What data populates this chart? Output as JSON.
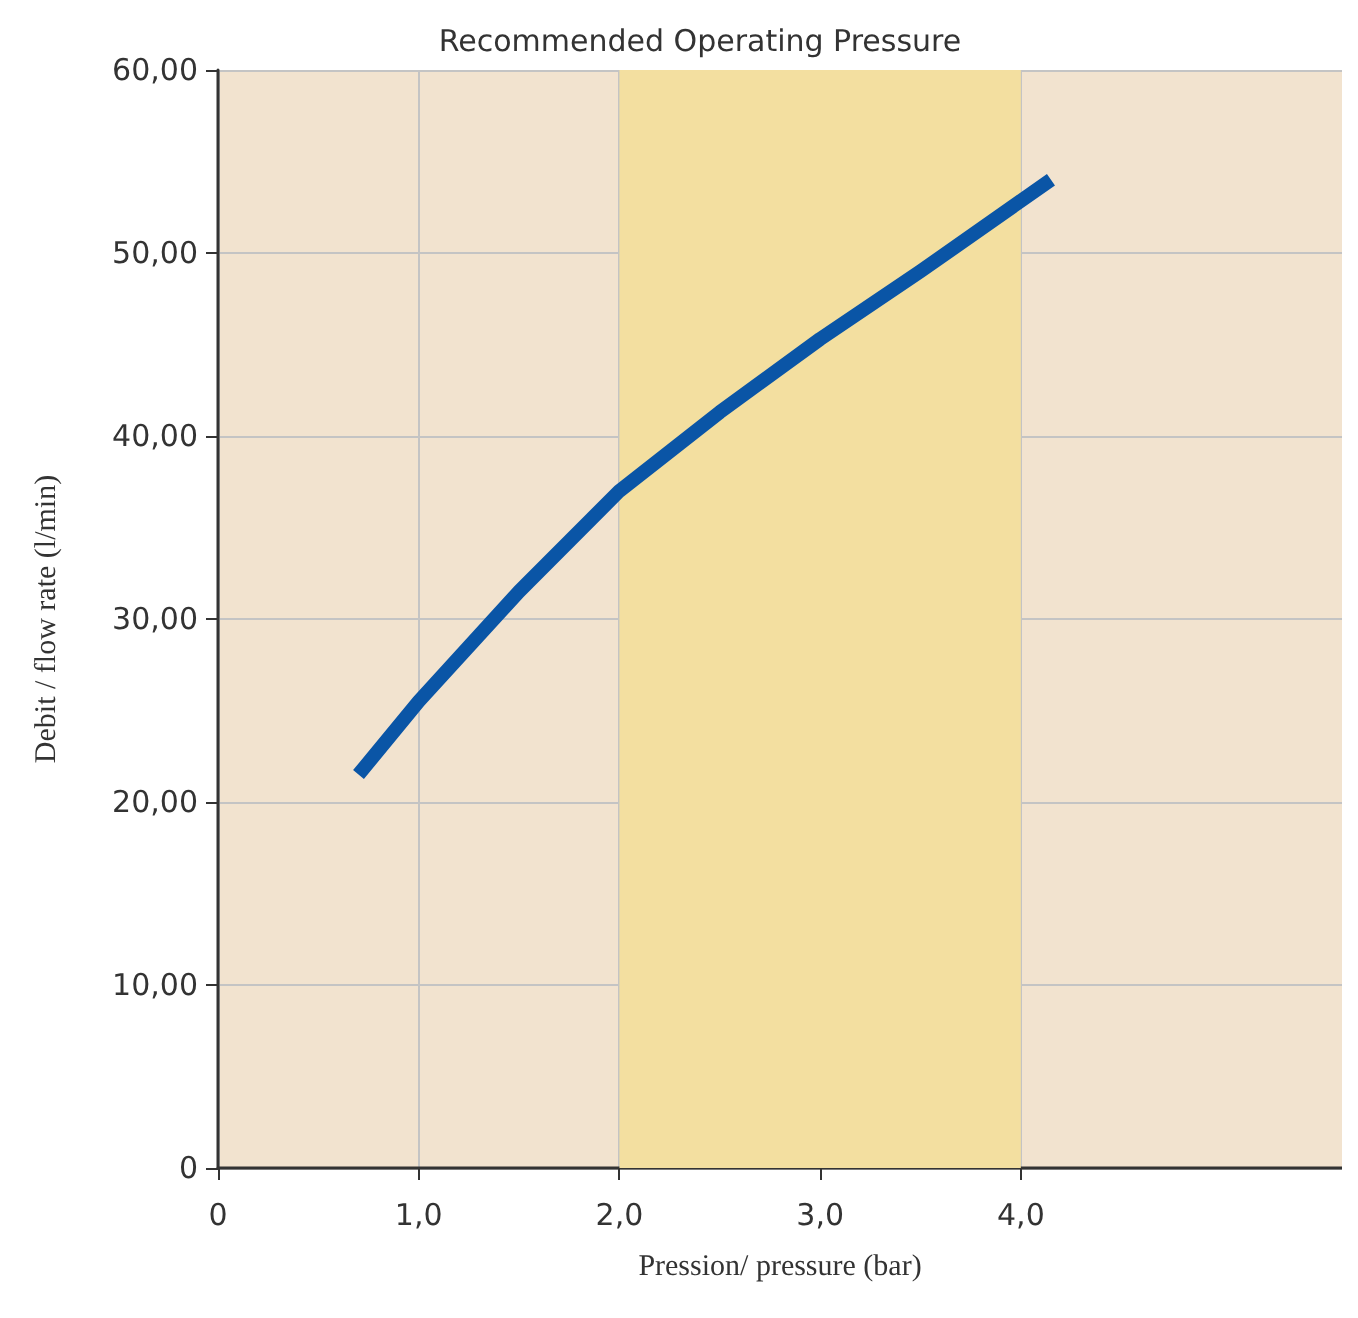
{
  "chart_data": {
    "type": "line",
    "title": "Recommended Operating Pressure",
    "xlabel": "Pression/ pressure (bar)",
    "ylabel": "Debit / flow rate (l/min)",
    "series": [
      {
        "color": "#0a55a6",
        "x": [
          0.7,
          1.0,
          1.5,
          2.0,
          2.5,
          3.0,
          3.5,
          4.15
        ],
        "values": [
          21.5,
          25.5,
          31.5,
          37,
          41.3,
          45.3,
          49,
          54
        ]
      }
    ],
    "xlim": [
      0,
      5.6
    ],
    "ylim": [
      0,
      60
    ],
    "xticks": [
      0,
      {
        "value": 1,
        "label": "1,0"
      },
      {
        "value": 2,
        "label": "2,0"
      },
      {
        "value": 3,
        "label": "3,0"
      },
      {
        "value": 4,
        "label": "4,0"
      }
    ],
    "yticks": [
      0,
      {
        "value": 10,
        "label": "10,00"
      },
      {
        "value": 20,
        "label": "20,00"
      },
      {
        "value": 30,
        "label": "30,00"
      },
      {
        "value": 40,
        "label": "40,00"
      },
      {
        "value": 50,
        "label": "50,00"
      },
      {
        "value": 60,
        "label": "60,00"
      }
    ],
    "bands": [
      {
        "axis": "x",
        "from": 2,
        "to": 4,
        "color": "#f3dfa0"
      }
    ],
    "grid": true,
    "marker": "none",
    "line_style": "solid"
  }
}
